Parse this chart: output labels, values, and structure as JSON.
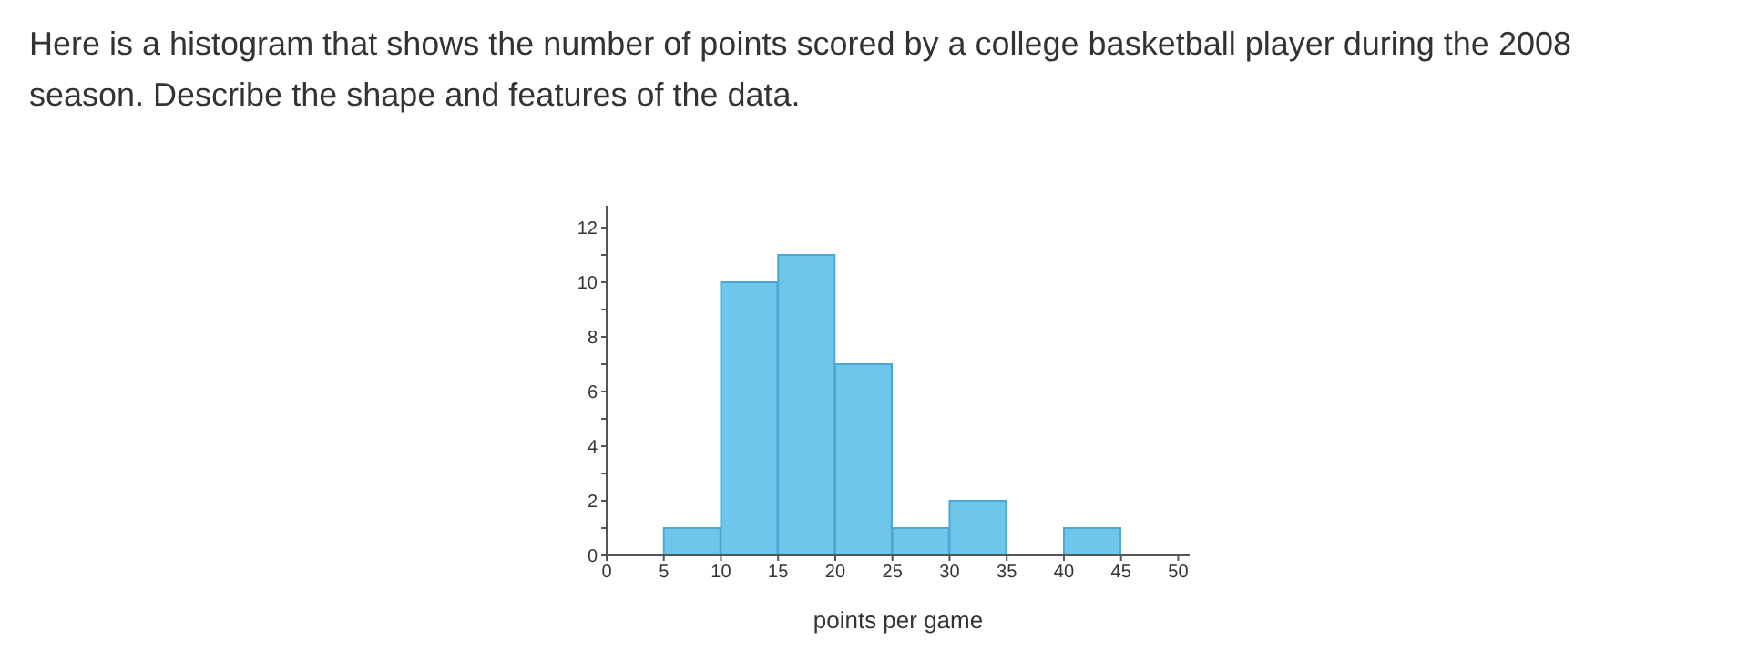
{
  "chart_data": {
    "type": "histogram",
    "title": "Here is a histogram that shows the number of points scored by a college basketball player during the 2008 season. Describe the shape and features of the data.",
    "xlabel": "points per game",
    "bins": [
      0,
      5,
      10,
      15,
      20,
      25,
      30,
      35,
      40,
      45,
      50
    ],
    "values": [
      0,
      1,
      10,
      11,
      7,
      1,
      2,
      0,
      1,
      0
    ],
    "color": "#6ec6ea",
    "xlim": [
      0,
      51
    ],
    "xticks": [
      0,
      5,
      10,
      15,
      20,
      25,
      30,
      35,
      40,
      45,
      50
    ],
    "ylim": [
      0,
      12.8
    ],
    "yticks": [
      0,
      {
        "value": 1,
        "label": null
      },
      2,
      {
        "value": 3,
        "label": null
      },
      4,
      {
        "value": 5,
        "label": null
      },
      6,
      {
        "value": 7,
        "label": null
      },
      8,
      {
        "value": 9,
        "label": null
      },
      10,
      {
        "value": 11,
        "label": null
      },
      12
    ],
    "grid": false,
    "legend": false
  }
}
